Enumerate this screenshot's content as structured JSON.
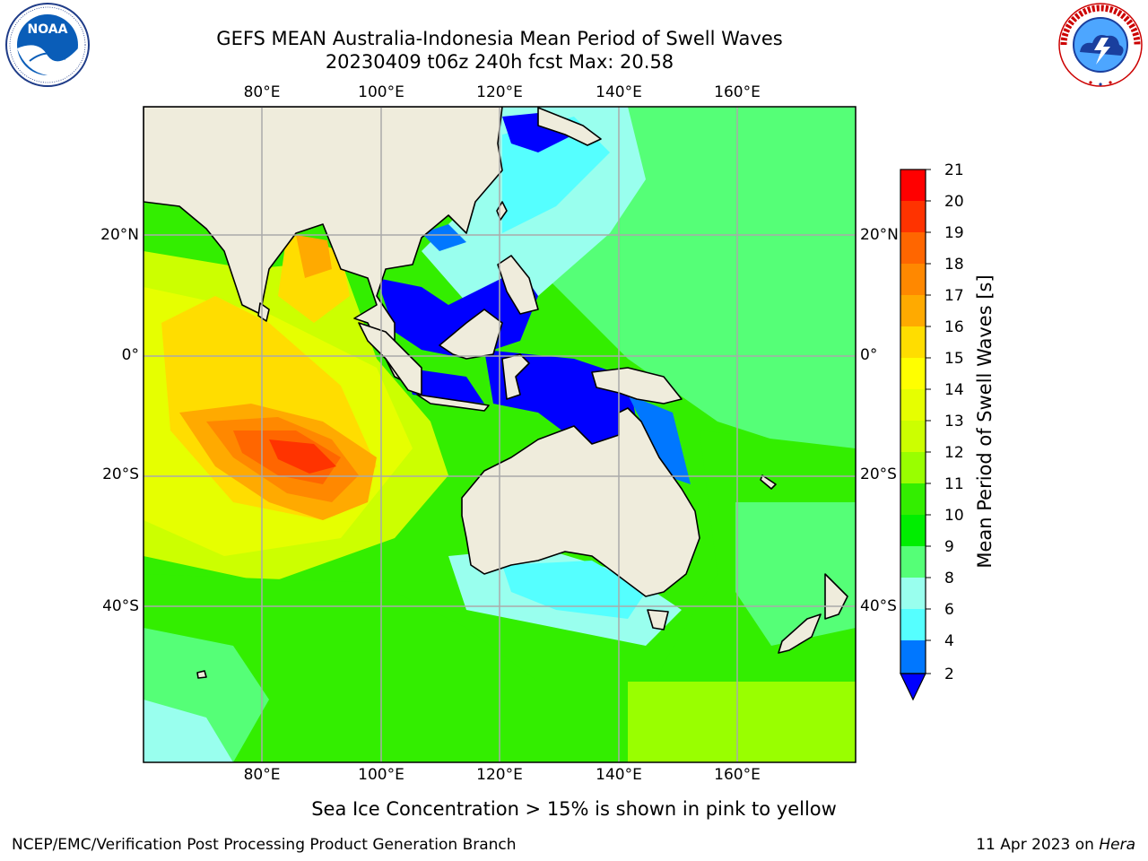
{
  "title": {
    "line1": "GEFS MEAN Australia-Indonesia Mean Period of Swell Waves",
    "line2": "20230409 t06z 240h fcst   Max: 20.58"
  },
  "logos": {
    "left": {
      "name": "noaa-logo",
      "text": "NOAA",
      "ring_text": "NATIONAL OCEANIC AND ATMOSPHERIC ADMINISTRATION · U.S. DEPARTMENT OF COMMERCE"
    },
    "right": {
      "name": "nws-logo",
      "ring_text": "NATIONAL WEATHER SERVICE"
    }
  },
  "map": {
    "lon_labels": [
      "80°E",
      "100°E",
      "120°E",
      "140°E",
      "160°E"
    ],
    "lat_labels": [
      "20°N",
      "0°",
      "20°S",
      "40°S"
    ],
    "grid": true
  },
  "colorbar": {
    "label": "Mean Period of Swell Waves [s]",
    "ticks": [
      "21",
      "20",
      "19",
      "18",
      "17",
      "16",
      "15",
      "14",
      "13",
      "12",
      "11",
      "10",
      "9",
      "8",
      "6",
      "4",
      "2"
    ],
    "colors": [
      "#ff0000",
      "#ff3300",
      "#ff6600",
      "#ff8800",
      "#ffaa00",
      "#ffdd00",
      "#ffff00",
      "#e6ff00",
      "#ccff00",
      "#99ff00",
      "#33ee00",
      "#00ee00",
      "#55ff77",
      "#99ffee",
      "#55ffff",
      "#00ffff",
      "#0077ff"
    ],
    "extend_color": "#0000ff"
  },
  "notes": {
    "sea_ice": "Sea Ice Concentration > 15% is shown in pink to yellow"
  },
  "footer": {
    "left": "NCEP/EMC/Verification Post Processing Product Generation Branch",
    "date": "11 Apr 2023 on ",
    "host": "Hera"
  },
  "colors": {
    "land": "#efecdc",
    "grid": "#aaaaaa",
    "sea_ice_min": "#ff66cc"
  }
}
